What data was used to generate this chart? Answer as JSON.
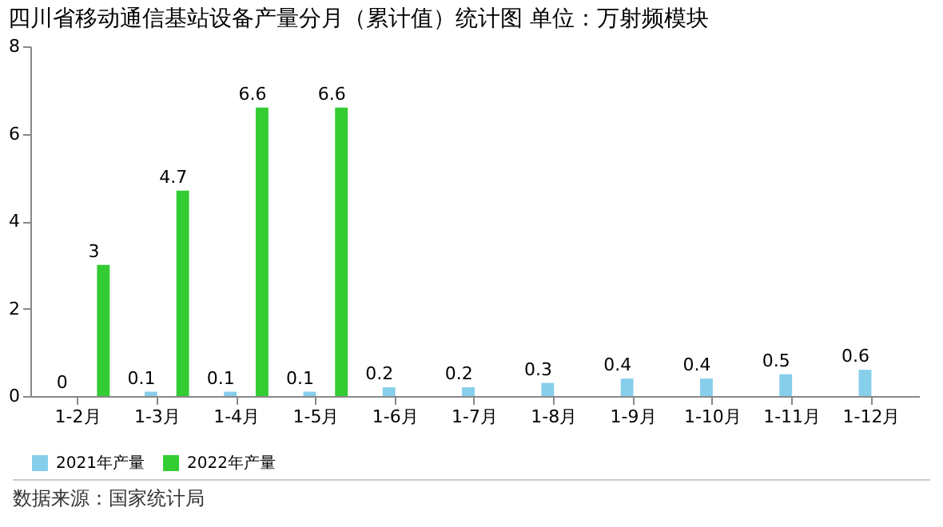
{
  "chart_data": {
    "type": "bar",
    "title": "四川省移动通信基站设备产量分月（累计值）统计图 单位：万射频模块",
    "categories": [
      "1-2月",
      "1-3月",
      "1-4月",
      "1-5月",
      "1-6月",
      "1-7月",
      "1-8月",
      "1-9月",
      "1-10月",
      "1-11月",
      "1-12月"
    ],
    "series": [
      {
        "name": "2021年产量",
        "color": "#87ceeb",
        "values": [
          0,
          0.1,
          0.1,
          0.1,
          0.2,
          0.2,
          0.3,
          0.4,
          0.4,
          0.5,
          0.6
        ]
      },
      {
        "name": "2022年产量",
        "color": "#33cc33",
        "values": [
          3,
          4.7,
          6.6,
          6.6,
          null,
          null,
          null,
          null,
          null,
          null,
          null
        ]
      }
    ],
    "ylim": [
      0,
      8
    ],
    "yticks": [
      0,
      2,
      4,
      6,
      8
    ],
    "grid": false,
    "legend": "bottom",
    "data_labels": true,
    "annotations": [
      "数据来源：国家统计局"
    ]
  }
}
